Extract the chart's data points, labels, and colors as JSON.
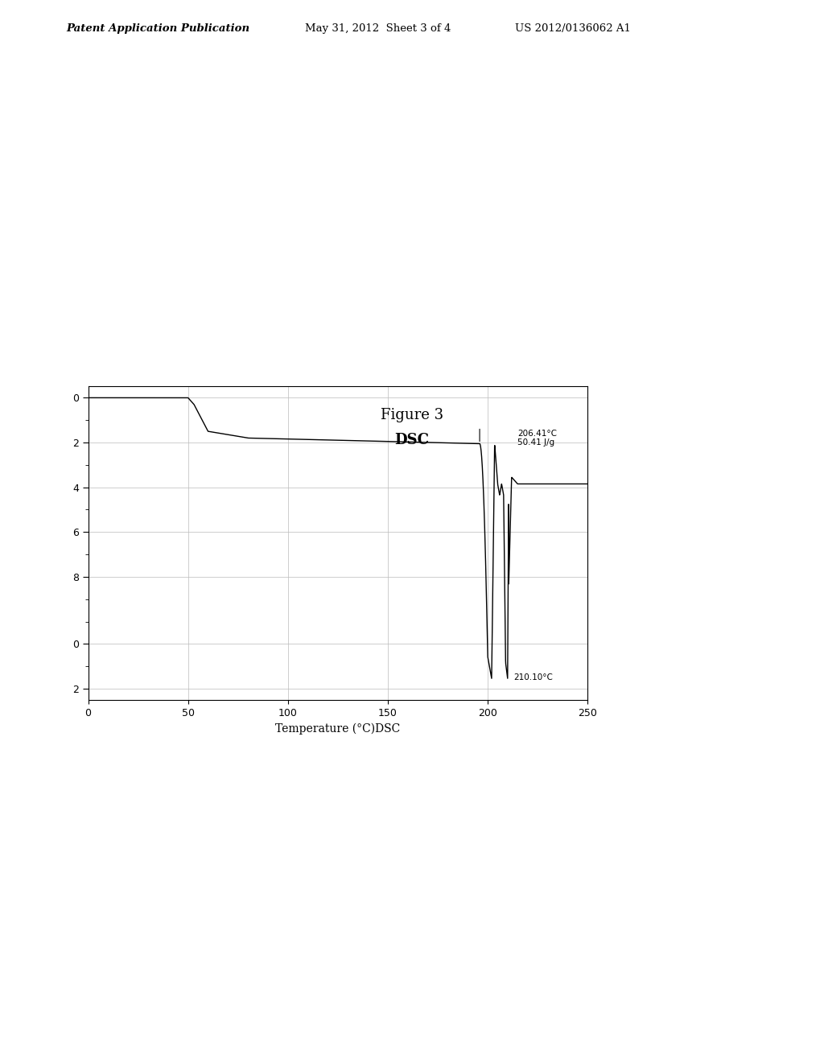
{
  "title_line1": "Figure 3",
  "title_line2": "DSC",
  "xlabel": "Temperature (°C)DSC",
  "header_left": "Patent Application Publication",
  "header_mid": "May 31, 2012  Sheet 3 of 4",
  "header_right": "US 2012/0136062 A1",
  "annotation1": "206.41°C\n50.41 J/g",
  "annotation2": "210.10°C",
  "xlim": [
    0,
    250
  ],
  "ylim": [
    -13.5,
    0.5
  ],
  "xticks": [
    0,
    50,
    100,
    150,
    200,
    250
  ],
  "ytick_labels": [
    "0",
    "2",
    "4",
    "6",
    "8",
    "0",
    "2"
  ],
  "ytick_positions": [
    0.0,
    -2.0,
    -4.0,
    -6.0,
    -8.0,
    -11.0,
    -13.0
  ],
  "background_color": "#ffffff",
  "plot_bg": "#ffffff",
  "line_color": "#000000",
  "grid_color": "#bbbbbb"
}
